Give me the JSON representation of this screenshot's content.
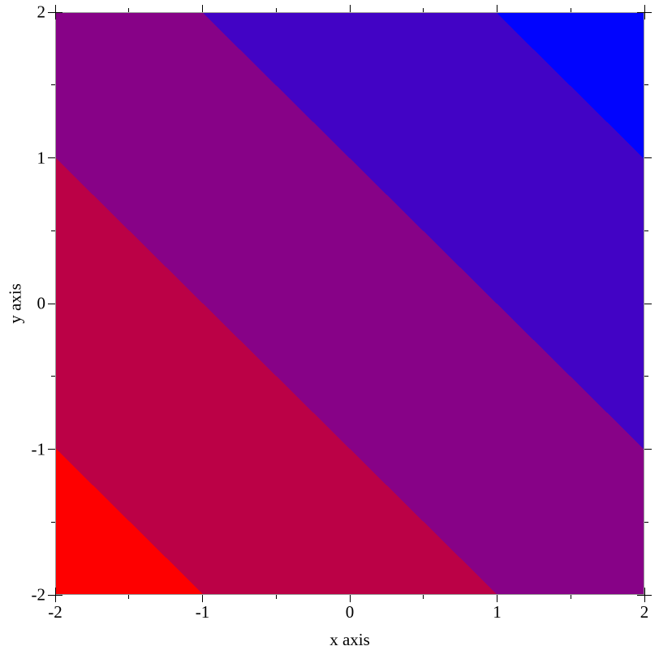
{
  "chart_data": {
    "type": "heatmap",
    "subtype": "filled-contour-intervals",
    "title": "",
    "xlabel": "x axis",
    "ylabel": "y axis",
    "x_range": [
      -2,
      2
    ],
    "y_range": [
      -2,
      2
    ],
    "z_range": [
      -4,
      4
    ],
    "surface": "z = x + y (straight diagonal iso-bands, slope -1)",
    "contour_levels": [
      -3,
      -1,
      1,
      3
    ],
    "bands": [
      {
        "name": "red-band",
        "z_min": -4,
        "z_max": -3,
        "region": "bottom-left corner triangle (-2,-1)-(-1,-2)",
        "color": "#fe0000"
      },
      {
        "name": "crimson-band",
        "z_min": -3,
        "z_max": -1,
        "region": "band between x+y=-3 and x+y=-1",
        "color": "#bb0146"
      },
      {
        "name": "purple-band",
        "z_min": -1,
        "z_max": 1,
        "region": "central band between x+y=-1 and x+y=1",
        "color": "#870287"
      },
      {
        "name": "indigo-band",
        "z_min": 1,
        "z_max": 3,
        "region": "band between x+y=1 and x+y=3",
        "color": "#4203c5"
      },
      {
        "name": "blue-band",
        "z_min": 3,
        "z_max": 4,
        "region": "top-right corner triangle (1,2)-(2,1)",
        "color": "#0104fe"
      }
    ],
    "x_major_ticks": [
      -2,
      -1,
      0,
      1,
      2
    ],
    "x_minor_ticks": [
      -1.5,
      -0.5,
      0.5,
      1.5
    ],
    "y_major_ticks": [
      -2,
      -1,
      0,
      1,
      2
    ],
    "y_minor_ticks": [
      -1.5,
      -0.5,
      0.5,
      1.5
    ],
    "x_tick_labels": [
      "-2",
      "-1",
      "0",
      "1",
      "2"
    ],
    "y_tick_labels": [
      "-2",
      "-1",
      "0",
      "1",
      "2"
    ],
    "tick_style": "outward on all four box sides; crosses at the four corners",
    "grid": false,
    "legend": "none",
    "axis_box_color": "#9a9a9a",
    "tick_color": "#000000",
    "text_color": "#000000",
    "background": "#ffffff"
  }
}
